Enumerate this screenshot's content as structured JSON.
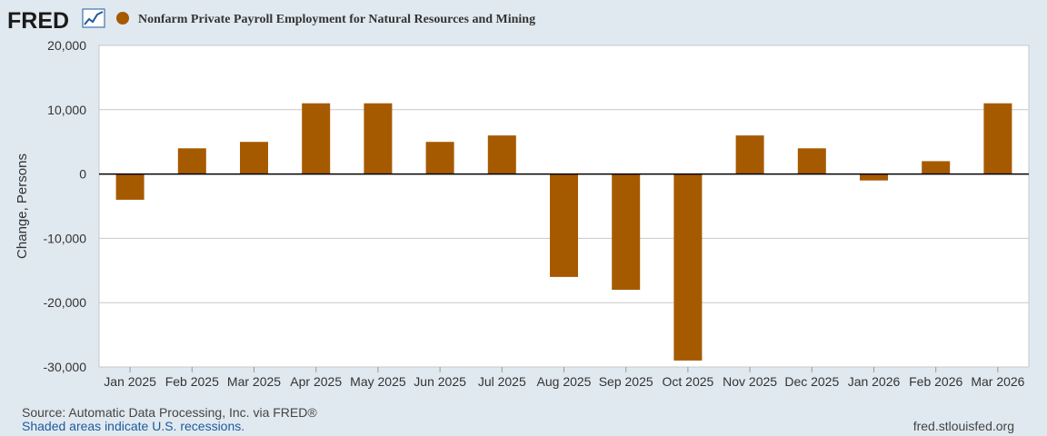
{
  "header": {
    "logo_text": "FRED",
    "logo_icon": "line-chart-icon",
    "series_title": "Nonfarm Private Payroll Employment for Natural Resources and Mining"
  },
  "footer": {
    "source": "Source: Automatic Data Processing, Inc. via FRED®",
    "recession_note": "Shaded areas indicate U.S. recessions.",
    "site": "fred.stlouisfed.org"
  },
  "colors": {
    "page_background": "#e1e9f0",
    "plot_background": "#ffffff",
    "bar": "#a65a00",
    "grid": "#c8c8c8",
    "zero_line": "#000000",
    "logo_icon_blue": "#1d5a9c",
    "footer_link": "#1d5a9c"
  },
  "chart_data": {
    "type": "bar",
    "title": "Nonfarm Private Payroll Employment for Natural Resources and Mining",
    "xlabel": "",
    "ylabel": "Change, Persons",
    "categories": [
      "Jan 2025",
      "Feb 2025",
      "Mar 2025",
      "Apr 2025",
      "May 2025",
      "Jun 2025",
      "Jul 2025",
      "Aug 2025",
      "Sep 2025",
      "Oct 2025",
      "Nov 2025",
      "Dec 2025",
      "Jan 2026",
      "Feb 2026",
      "Mar 2026"
    ],
    "series": [
      {
        "name": "Nonfarm Private Payroll Employment for Natural Resources and Mining",
        "values": [
          -4000,
          4000,
          5000,
          11000,
          11000,
          5000,
          6000,
          -16000,
          -18000,
          -29000,
          6000,
          4000,
          -1000,
          2000,
          11000
        ]
      }
    ],
    "ylim": [
      -30000,
      20000
    ],
    "yticks": [
      20000,
      10000,
      0,
      -10000,
      -20000,
      -30000
    ],
    "ytick_labels": [
      "20,000",
      "10,000",
      "0",
      "-10,000",
      "-20,000",
      "-30,000"
    ],
    "grid": true,
    "legend": "top-left"
  }
}
